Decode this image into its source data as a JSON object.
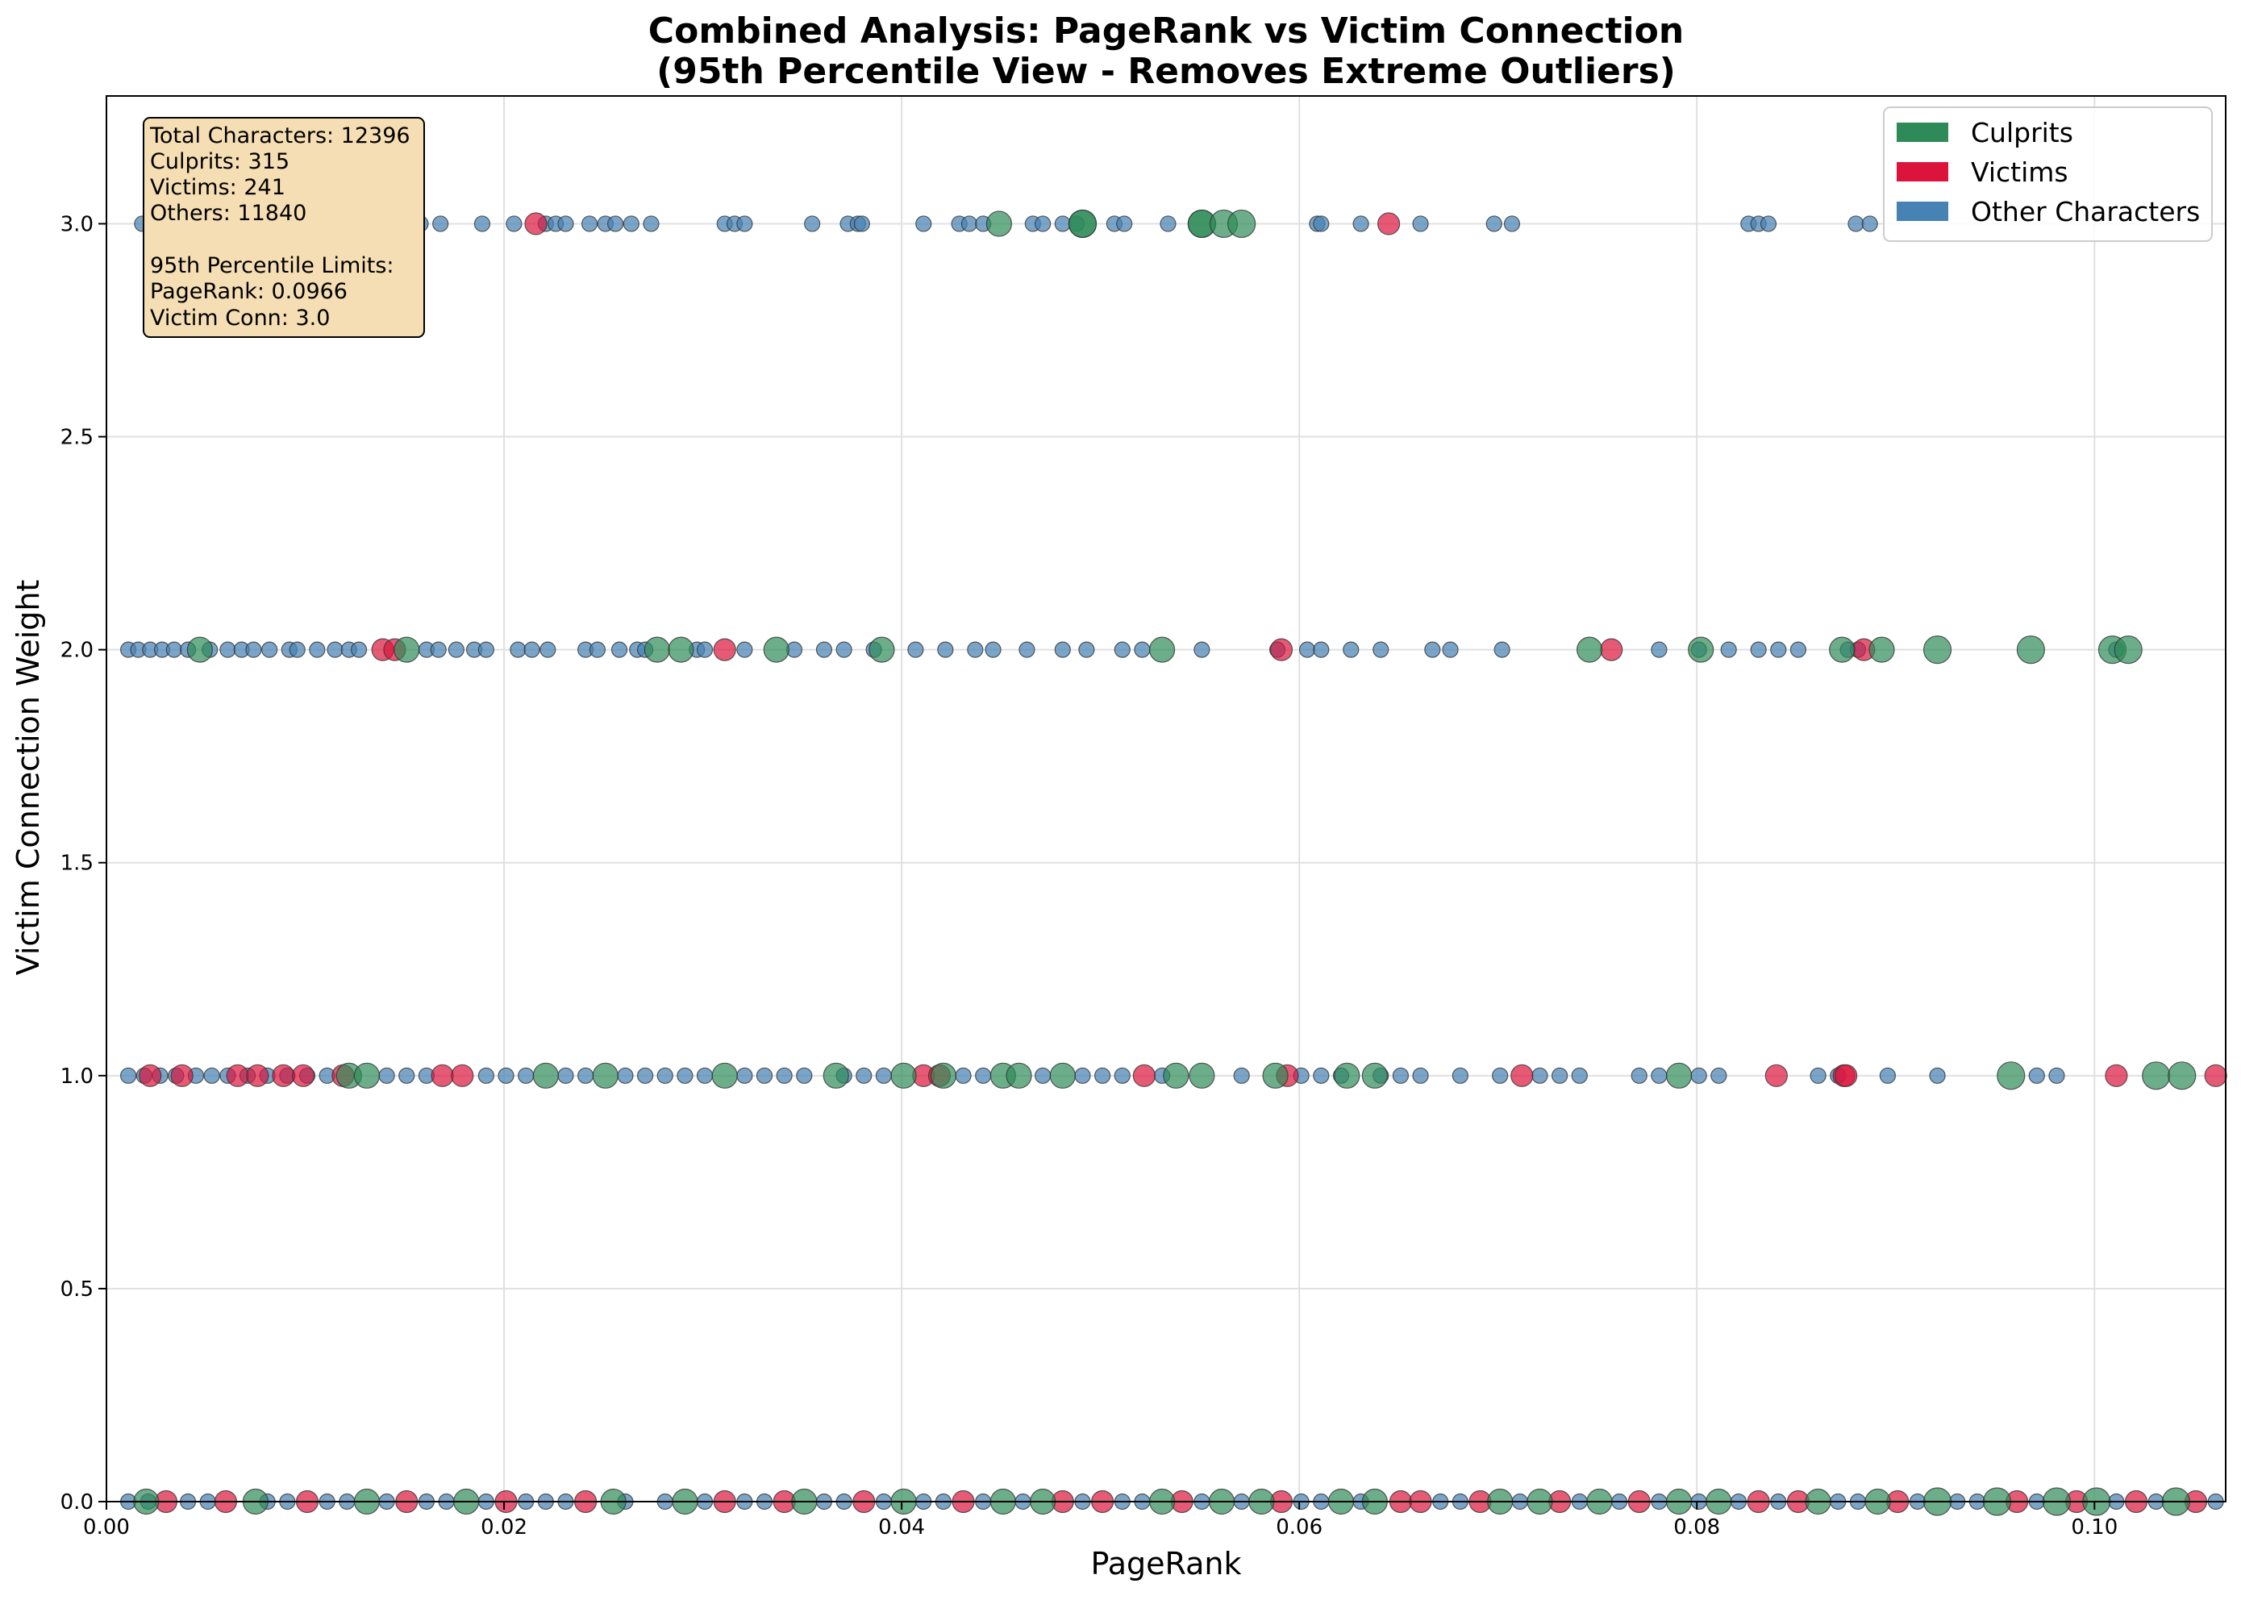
{
  "chart_data": {
    "type": "scatter",
    "title": "Combined Analysis: PageRank vs Victim Connection",
    "subtitle": "(95th Percentile View - Removes Extreme Outliers)",
    "xlabel": "PageRank",
    "ylabel": "Victim Connection Weight",
    "xlim": [
      0.0,
      0.1066
    ],
    "ylim": [
      0.0,
      3.3
    ],
    "x_ticks": [
      0.0,
      0.02,
      0.04,
      0.06,
      0.08,
      0.1
    ],
    "x_tick_labels": [
      "0.00",
      "0.02",
      "0.04",
      "0.06",
      "0.08",
      "0.10"
    ],
    "y_ticks": [
      0.0,
      0.5,
      1.0,
      1.5,
      2.0,
      2.5,
      3.0
    ],
    "y_tick_labels": [
      "0.0",
      "0.5",
      "1.0",
      "1.5",
      "2.0",
      "2.5",
      "3.0"
    ],
    "grid": true,
    "legend_position": "top-right",
    "info_box": {
      "lines": [
        "Total Characters: 12396",
        "Culprits: 315",
        "Victims: 241",
        "Others: 11840",
        "",
        "95th Percentile Limits:",
        "PageRank: 0.0966",
        "Victim Conn: 3.0"
      ]
    },
    "series": [
      {
        "name": "Culprits",
        "color": "#2e8b57",
        "y_level_points": {
          "3": [
            0.0152,
            0.0449,
            0.0491,
            0.0491,
            0.0551,
            0.0551,
            0.0562,
            0.0571
          ],
          "2": [
            0.0047,
            0.0151,
            0.0277,
            0.0289,
            0.0337,
            0.039,
            0.0531,
            0.0746,
            0.0802,
            0.0873,
            0.0893,
            0.0921,
            0.0968,
            0.1009,
            0.1017
          ],
          "1": [
            0.0122,
            0.0131,
            0.0221,
            0.0251,
            0.0311,
            0.0367,
            0.0401,
            0.0421,
            0.0451,
            0.0459,
            0.0481,
            0.0538,
            0.0551,
            0.0588,
            0.0624,
            0.0638,
            0.0791,
            0.0958,
            0.1031,
            0.1044
          ],
          "0": [
            0.002,
            0.0075,
            0.0131,
            0.0181,
            0.0255,
            0.0291,
            0.0351,
            0.0401,
            0.0451,
            0.0471,
            0.0531,
            0.0561,
            0.0581,
            0.0621,
            0.0638,
            0.0701,
            0.0721,
            0.0751,
            0.0791,
            0.0811,
            0.0861,
            0.0891,
            0.0921,
            0.0951,
            0.0981,
            0.1001,
            0.1041
          ]
        }
      },
      {
        "name": "Victims",
        "color": "#dc143c",
        "y_level_points": {
          "3": [
            0.0216,
            0.0645
          ],
          "2": [
            0.0139,
            0.0145,
            0.0311,
            0.0591,
            0.0757,
            0.0884
          ],
          "1": [
            0.0022,
            0.0038,
            0.0066,
            0.0076,
            0.0089,
            0.0099,
            0.0119,
            0.0169,
            0.0179,
            0.0411,
            0.0419,
            0.0522,
            0.0594,
            0.0712,
            0.084,
            0.0874,
            0.0875,
            0.1011,
            0.1061
          ],
          "0": [
            0.003,
            0.006,
            0.0101,
            0.0151,
            0.0201,
            0.0241,
            0.0311,
            0.0341,
            0.0381,
            0.0431,
            0.0481,
            0.0501,
            0.0541,
            0.0591,
            0.0651,
            0.0661,
            0.0691,
            0.0731,
            0.0771,
            0.0831,
            0.0851,
            0.0901,
            0.0961,
            0.0991,
            0.1021,
            0.1051
          ]
        }
      },
      {
        "name": "Other Characters",
        "color": "#4682b4",
        "y_level_points": {
          "3": [
            0.0018,
            0.0028,
            0.0038,
            0.0048,
            0.0058,
            0.0068,
            0.0078,
            0.0088,
            0.0098,
            0.0108,
            0.0118,
            0.0128,
            0.0138,
            0.0146,
            0.0158,
            0.0168,
            0.0189,
            0.0205,
            0.0221,
            0.0226,
            0.0231,
            0.0243,
            0.0251,
            0.0256,
            0.0264,
            0.0274,
            0.0311,
            0.0316,
            0.0321,
            0.0355,
            0.0373,
            0.0378,
            0.038,
            0.0411,
            0.0429,
            0.0434,
            0.0441,
            0.0466,
            0.0471,
            0.0481,
            0.0488,
            0.0507,
            0.0512,
            0.0534,
            0.0609,
            0.0611,
            0.0631,
            0.0661,
            0.0698,
            0.0707,
            0.0826,
            0.0831,
            0.0836,
            0.088,
            0.0887
          ],
          "2": [
            0.0011,
            0.0016,
            0.0022,
            0.0028,
            0.0034,
            0.0041,
            0.0052,
            0.0061,
            0.0068,
            0.0074,
            0.0082,
            0.0092,
            0.0096,
            0.0106,
            0.0115,
            0.0122,
            0.0127,
            0.0161,
            0.0167,
            0.0176,
            0.0185,
            0.0191,
            0.0207,
            0.0214,
            0.0222,
            0.0241,
            0.0247,
            0.0258,
            0.0267,
            0.0271,
            0.0297,
            0.0301,
            0.0321,
            0.0346,
            0.0361,
            0.0371,
            0.0386,
            0.0407,
            0.0422,
            0.0437,
            0.0446,
            0.0463,
            0.0481,
            0.0493,
            0.0511,
            0.0521,
            0.0551,
            0.0589,
            0.0604,
            0.0611,
            0.0626,
            0.0641,
            0.0667,
            0.0676,
            0.0702,
            0.0781,
            0.0801,
            0.0816,
            0.0831,
            0.0841,
            0.0851,
            0.0876,
            0.0881,
            0.1011
          ],
          "1": [
            0.0011,
            0.0019,
            0.0027,
            0.0035,
            0.0045,
            0.0053,
            0.0061,
            0.0071,
            0.0081,
            0.0091,
            0.0101,
            0.0111,
            0.0141,
            0.0151,
            0.0161,
            0.0191,
            0.0201,
            0.0211,
            0.0231,
            0.0241,
            0.0261,
            0.0271,
            0.0281,
            0.0291,
            0.0301,
            0.0321,
            0.0331,
            0.0341,
            0.0351,
            0.0371,
            0.0381,
            0.0391,
            0.0431,
            0.0441,
            0.0471,
            0.0491,
            0.0501,
            0.0511,
            0.0531,
            0.0571,
            0.0601,
            0.0611,
            0.0621,
            0.0641,
            0.0651,
            0.0661,
            0.0681,
            0.0701,
            0.0721,
            0.0731,
            0.0741,
            0.0771,
            0.0781,
            0.0801,
            0.0811,
            0.0861,
            0.0871,
            0.0896,
            0.0921,
            0.0971,
            0.0981
          ],
          "0": [
            0.0011,
            0.0021,
            0.0041,
            0.0051,
            0.0081,
            0.0091,
            0.0111,
            0.0121,
            0.0141,
            0.0161,
            0.0171,
            0.0191,
            0.0211,
            0.0221,
            0.0231,
            0.0261,
            0.0281,
            0.0301,
            0.0321,
            0.0331,
            0.0361,
            0.0371,
            0.0391,
            0.0411,
            0.0421,
            0.0441,
            0.0461,
            0.0491,
            0.0511,
            0.0521,
            0.0551,
            0.0571,
            0.0601,
            0.0611,
            0.0631,
            0.0671,
            0.0681,
            0.0711,
            0.0741,
            0.0761,
            0.0781,
            0.0801,
            0.0821,
            0.0841,
            0.0871,
            0.0881,
            0.0911,
            0.0931,
            0.0941,
            0.0971,
            0.1011,
            0.1031,
            0.1061
          ]
        }
      }
    ]
  }
}
